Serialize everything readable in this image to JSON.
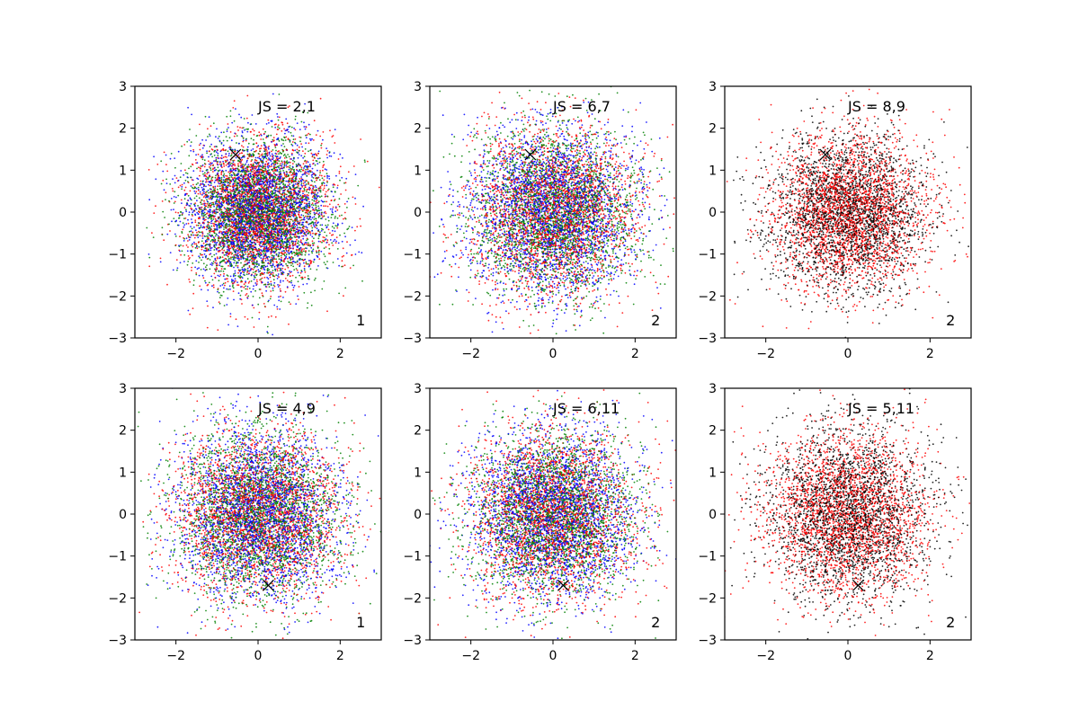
{
  "figure": {
    "background": "#ffffff",
    "layout": "2 rows x 3 columns"
  },
  "chart_data": [
    {
      "type": "scatter",
      "xlim": [
        -3,
        3
      ],
      "ylim": [
        -3,
        3
      ],
      "xticks": [
        -2,
        0,
        2
      ],
      "yticks": [
        -3,
        -2,
        -1,
        0,
        1,
        2,
        3
      ],
      "xtick_labels": [
        "−2",
        "0",
        "2"
      ],
      "ytick_labels": [
        "−3",
        "−2",
        "−1",
        "0",
        "1",
        "2",
        "3"
      ],
      "annotation": "JS = 2,1",
      "corner_label": "1",
      "marker": {
        "x": -0.55,
        "y": 1.37,
        "symbol": "x",
        "color": "#000000"
      },
      "series": [
        {
          "color": "#0000ff",
          "n_points": 2500,
          "distribution": "gaussian",
          "mean": [
            0,
            0
          ],
          "std": 0.85
        },
        {
          "color": "#ff0000",
          "n_points": 2500,
          "distribution": "gaussian",
          "mean": [
            0,
            0
          ],
          "std": 0.85
        },
        {
          "color": "#008000",
          "n_points": 2500,
          "distribution": "gaussian",
          "mean": [
            0,
            0
          ],
          "std": 0.85
        }
      ]
    },
    {
      "type": "scatter",
      "xlim": [
        -3,
        3
      ],
      "ylim": [
        -3,
        3
      ],
      "xticks": [
        -2,
        0,
        2
      ],
      "yticks": [
        -3,
        -2,
        -1,
        0,
        1,
        2,
        3
      ],
      "xtick_labels": [
        "−2",
        "0",
        "2"
      ],
      "ytick_labels": [
        "−3",
        "−2",
        "−1",
        "0",
        "1",
        "2",
        "3"
      ],
      "annotation": "JS = 6,7",
      "corner_label": "2",
      "marker": {
        "x": -0.55,
        "y": 1.37,
        "symbol": "x",
        "color": "#000000"
      },
      "series": [
        {
          "color": "#0000ff",
          "n_points": 2500,
          "distribution": "gaussian",
          "mean": [
            0,
            0
          ],
          "std": 1.0
        },
        {
          "color": "#ff0000",
          "n_points": 2500,
          "distribution": "gaussian",
          "mean": [
            0,
            0
          ],
          "std": 1.0
        },
        {
          "color": "#008000",
          "n_points": 2500,
          "distribution": "gaussian",
          "mean": [
            0,
            0
          ],
          "std": 1.0
        }
      ]
    },
    {
      "type": "scatter",
      "xlim": [
        -3,
        3
      ],
      "ylim": [
        -3,
        3
      ],
      "xticks": [
        -2,
        0,
        2
      ],
      "yticks": [
        -3,
        -2,
        -1,
        0,
        1,
        2,
        3
      ],
      "xtick_labels": [
        "−2",
        "0",
        "2"
      ],
      "ytick_labels": [
        "−3",
        "−2",
        "−1",
        "0",
        "1",
        "2",
        "3"
      ],
      "annotation": "JS = 8,9",
      "corner_label": "2",
      "marker": {
        "x": -0.55,
        "y": 1.37,
        "symbol": "x",
        "color": "#000000"
      },
      "series": [
        {
          "color": "#000000",
          "n_points": 2500,
          "distribution": "gaussian",
          "mean": [
            0,
            0
          ],
          "std": 0.95
        },
        {
          "color": "#ff0000",
          "n_points": 2500,
          "distribution": "gaussian",
          "mean": [
            0,
            0
          ],
          "std": 0.95
        }
      ]
    },
    {
      "type": "scatter",
      "xlim": [
        -3,
        3
      ],
      "ylim": [
        -3,
        3
      ],
      "xticks": [
        -2,
        0,
        2
      ],
      "yticks": [
        -3,
        -2,
        -1,
        0,
        1,
        2,
        3
      ],
      "xtick_labels": [
        "−2",
        "0",
        "2"
      ],
      "ytick_labels": [
        "−3",
        "−2",
        "−1",
        "0",
        "1",
        "2",
        "3"
      ],
      "annotation": "JS = 4,9",
      "corner_label": "1",
      "marker": {
        "x": 0.25,
        "y": -1.7,
        "symbol": "x",
        "color": "#000000"
      },
      "series": [
        {
          "color": "#0000ff",
          "n_points": 2500,
          "distribution": "gaussian",
          "mean": [
            0,
            0
          ],
          "std": 1.0
        },
        {
          "color": "#ff0000",
          "n_points": 2500,
          "distribution": "gaussian",
          "mean": [
            0,
            0
          ],
          "std": 1.0
        },
        {
          "color": "#008000",
          "n_points": 2500,
          "distribution": "gaussian",
          "mean": [
            0,
            0
          ],
          "std": 1.0
        }
      ]
    },
    {
      "type": "scatter",
      "xlim": [
        -3,
        3
      ],
      "ylim": [
        -3,
        3
      ],
      "xticks": [
        -2,
        0,
        2
      ],
      "yticks": [
        -3,
        -2,
        -1,
        0,
        1,
        2,
        3
      ],
      "xtick_labels": [
        "−2",
        "0",
        "2"
      ],
      "ytick_labels": [
        "−3",
        "−2",
        "−1",
        "0",
        "1",
        "2",
        "3"
      ],
      "annotation": "JS = 6,11",
      "corner_label": "2",
      "marker": {
        "x": 0.25,
        "y": -1.7,
        "symbol": "x",
        "color": "#000000"
      },
      "series": [
        {
          "color": "#0000ff",
          "n_points": 2500,
          "distribution": "gaussian",
          "mean": [
            0,
            0
          ],
          "std": 1.0
        },
        {
          "color": "#ff0000",
          "n_points": 2500,
          "distribution": "gaussian",
          "mean": [
            0,
            0
          ],
          "std": 1.0
        },
        {
          "color": "#008000",
          "n_points": 2500,
          "distribution": "gaussian",
          "mean": [
            0,
            0
          ],
          "std": 1.0
        }
      ]
    },
    {
      "type": "scatter",
      "xlim": [
        -3,
        3
      ],
      "ylim": [
        -3,
        3
      ],
      "xticks": [
        -2,
        0,
        2
      ],
      "yticks": [
        -3,
        -2,
        -1,
        0,
        1,
        2,
        3
      ],
      "xtick_labels": [
        "−2",
        "0",
        "2"
      ],
      "ytick_labels": [
        "−3",
        "−2",
        "−1",
        "0",
        "1",
        "2",
        "3"
      ],
      "annotation": "JS = 5,11",
      "corner_label": "2",
      "marker": {
        "x": 0.25,
        "y": -1.7,
        "symbol": "x",
        "color": "#000000"
      },
      "series": [
        {
          "color": "#000000",
          "n_points": 2500,
          "distribution": "gaussian",
          "mean": [
            0,
            0
          ],
          "std": 1.0
        },
        {
          "color": "#ff0000",
          "n_points": 2500,
          "distribution": "gaussian",
          "mean": [
            0,
            0
          ],
          "std": 1.0
        }
      ]
    }
  ]
}
